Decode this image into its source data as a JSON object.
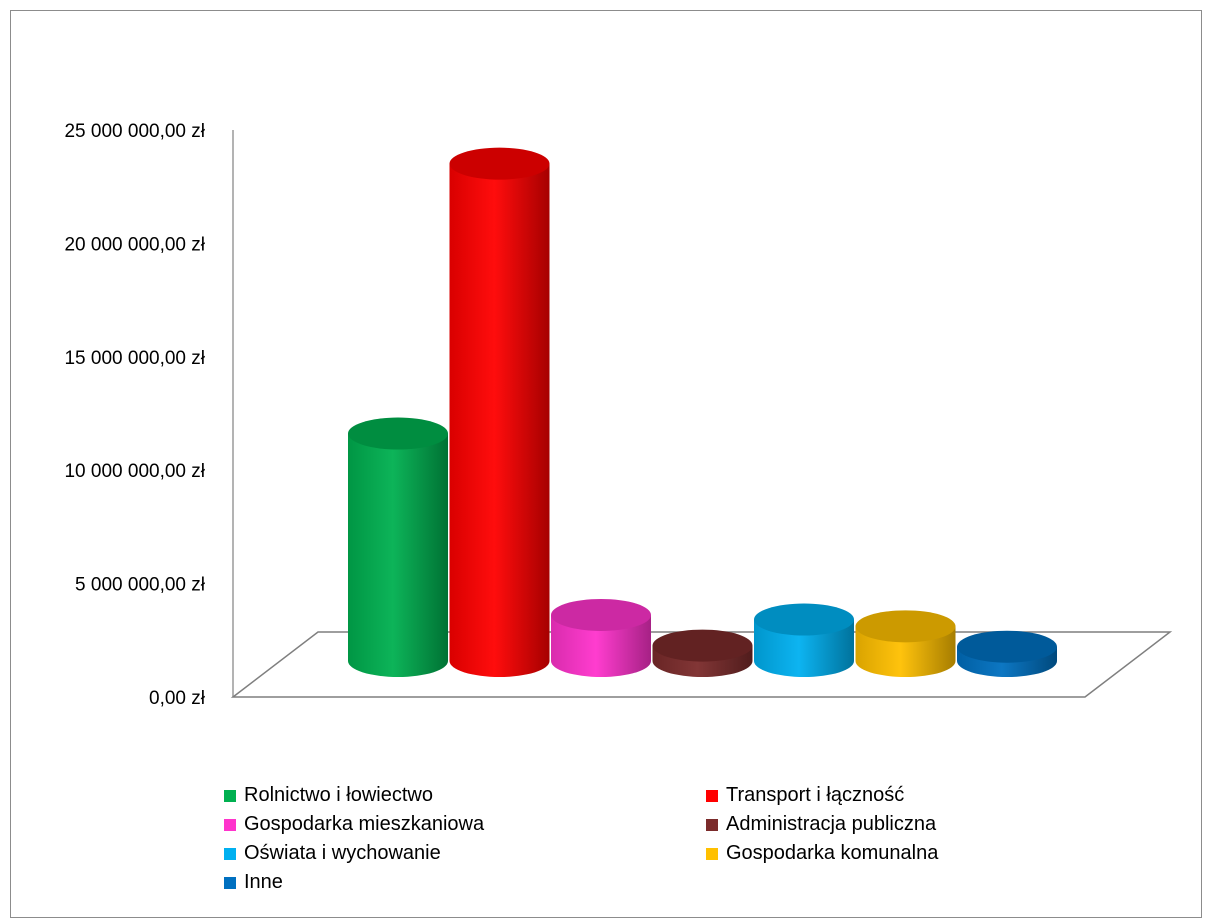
{
  "chart_data": {
    "type": "bar",
    "categories": [
      "Rolnictwo i łowiectwo",
      "Transport i łączność",
      "Gospodarka mieszkaniowa",
      "Administracja publiczna",
      "Oświata i wychowanie",
      "Gospodarka komunalna",
      "Inne"
    ],
    "values": [
      9500000,
      21400000,
      1500000,
      150000,
      1300000,
      1000000,
      100000
    ],
    "colors": [
      "#00b050",
      "#ff0000",
      "#ff33cc",
      "#7b2b2b",
      "#00b0f0",
      "#ffc000",
      "#0070c0"
    ],
    "ylim": [
      0,
      25000000
    ],
    "yticks": [
      0,
      5000000,
      10000000,
      15000000,
      20000000,
      25000000
    ],
    "ytick_labels": [
      "0,00 zł",
      "5 000 000,00 zł",
      "10 000 000,00 zł",
      "15 000 000,00 zł",
      "20 000 000,00 zł",
      "25 000 000,00 zł"
    ],
    "legend_position": "bottom",
    "grid": false,
    "title": "",
    "xlabel": "",
    "ylabel": ""
  }
}
